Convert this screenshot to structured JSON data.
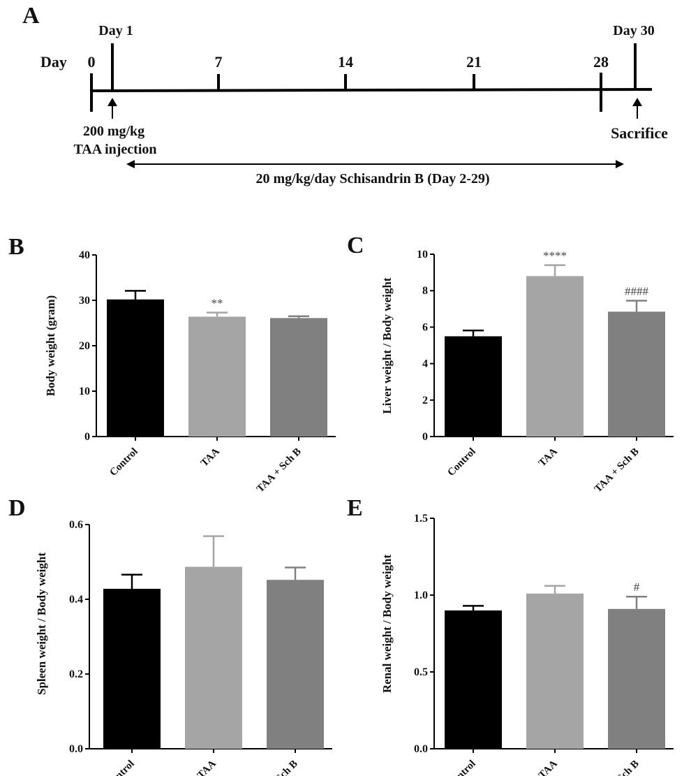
{
  "timeline": {
    "panel_letter": "A",
    "day_label": "Day",
    "day_ticks": [
      "0",
      "7",
      "14",
      "21",
      "28"
    ],
    "top_labels": [
      "Day 1",
      "Day 30"
    ],
    "injection_label": [
      "200 mg/kg",
      "TAA injection"
    ],
    "sacrifice_label": "Sacrifice",
    "treatment_label": "20 mg/kg/day  Schisandrin B (Day 2-29)"
  },
  "colors": {
    "Control": "#000000",
    "TAA": "#a5a5a5",
    "TAA + Sch B": "#808080"
  },
  "chart_data": [
    {
      "panel": "B",
      "type": "bar",
      "categories": [
        "Control",
        "TAA",
        "TAA + Sch B"
      ],
      "values": [
        30.2,
        26.4,
        26.1
      ],
      "errors": [
        1.9,
        0.9,
        0.4
      ],
      "annotations": [
        "",
        "**",
        ""
      ],
      "ylabel": "Body weight (gram)",
      "xlabel": "",
      "ylim": [
        0,
        40
      ],
      "yticks": [
        "0",
        "10",
        "20",
        "30",
        "40"
      ]
    },
    {
      "panel": "C",
      "type": "bar",
      "categories": [
        "Control",
        "TAA",
        "TAA + Sch B"
      ],
      "values": [
        5.5,
        8.8,
        6.85
      ],
      "errors": [
        0.32,
        0.6,
        0.6
      ],
      "annotations": [
        "",
        "****",
        "####"
      ],
      "ylabel": "Liver weight / Body weight",
      "xlabel": "",
      "ylim": [
        0,
        10
      ],
      "yticks": [
        "0",
        "2",
        "4",
        "6",
        "8",
        "10"
      ]
    },
    {
      "panel": "D",
      "type": "bar",
      "categories": [
        "Control",
        "TAA",
        "TAA + Sch B"
      ],
      "values": [
        0.428,
        0.487,
        0.452
      ],
      "errors": [
        0.038,
        0.082,
        0.033
      ],
      "annotations": [
        "",
        "",
        ""
      ],
      "ylabel": "Spleen weight / Body weight",
      "xlabel": "",
      "ylim": [
        0,
        0.6
      ],
      "yticks": [
        "0.0",
        "0.2",
        "0.4",
        "0.6"
      ]
    },
    {
      "panel": "E",
      "type": "bar",
      "categories": [
        "Control",
        "TAA",
        "TAA + Sch B"
      ],
      "values": [
        0.9,
        1.01,
        0.91
      ],
      "errors": [
        0.03,
        0.05,
        0.08
      ],
      "annotations": [
        "",
        "",
        "#"
      ],
      "ylabel": "Renal weight / Body weight",
      "xlabel": "",
      "ylim": [
        0,
        1.5
      ],
      "yticks": [
        "0.0",
        "0.5",
        "1.0",
        "1.5"
      ]
    }
  ]
}
